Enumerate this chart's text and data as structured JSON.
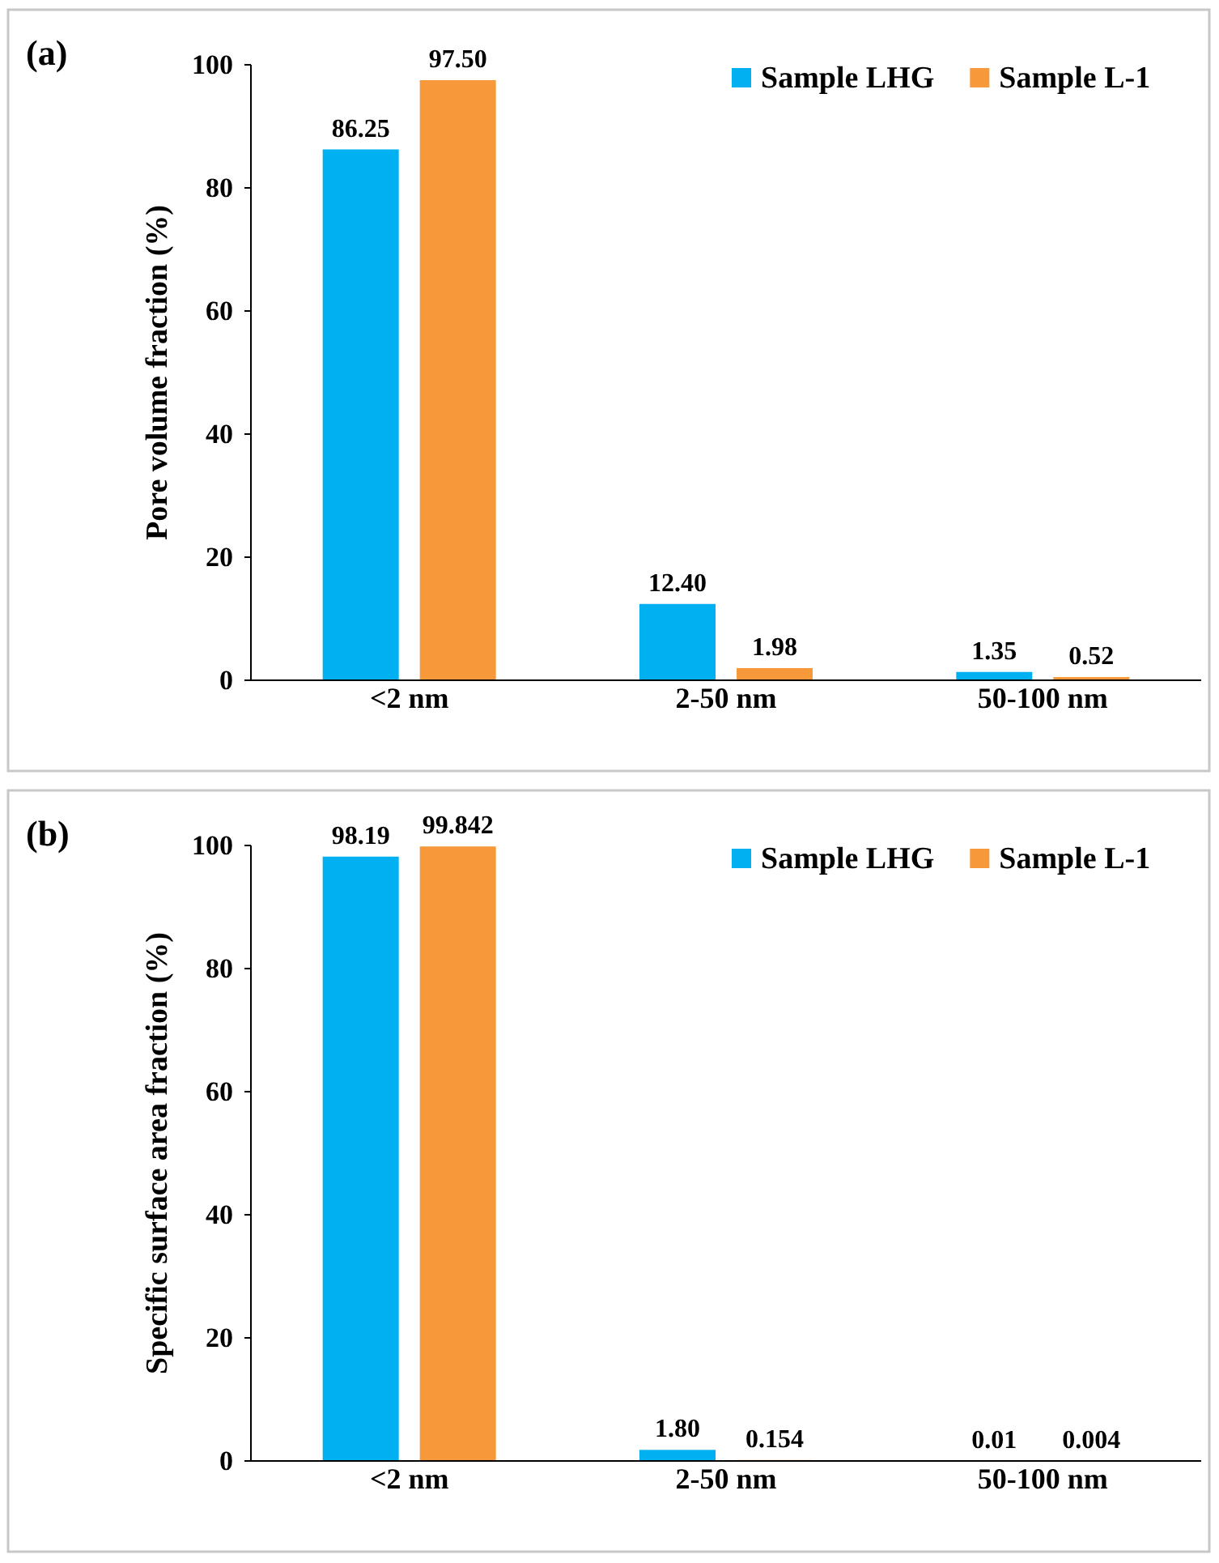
{
  "chart_data": [
    {
      "type": "bar",
      "annotations": [
        "(a)"
      ],
      "ylabel": "Pore volume fraction (%)",
      "categories": [
        "<2 nm",
        "2-50 nm",
        "50-100 nm"
      ],
      "ylim": [
        0,
        100
      ],
      "yticks": [
        0,
        20,
        40,
        60,
        80,
        100
      ],
      "legend": "top right",
      "series": [
        {
          "name": "Sample LHG",
          "color": "#00b0f0",
          "values": [
            86.25,
            12.4,
            1.35
          ],
          "value_labels": [
            "86.25",
            "12.40",
            "1.35"
          ]
        },
        {
          "name": "Sample L-1",
          "color": "#f7993a",
          "values": [
            97.5,
            1.98,
            0.52
          ],
          "value_labels": [
            "97.50",
            "1.98",
            "0.52"
          ]
        }
      ]
    },
    {
      "type": "bar",
      "annotations": [
        "(b)"
      ],
      "ylabel": "Specific surface area fraction (%)",
      "categories": [
        "<2 nm",
        "2-50 nm",
        "50-100 nm"
      ],
      "ylim": [
        0,
        100
      ],
      "yticks": [
        0,
        20,
        40,
        60,
        80,
        100
      ],
      "legend": "top right",
      "series": [
        {
          "name": "Sample LHG",
          "color": "#00b0f0",
          "values": [
            98.19,
            1.8,
            0.01
          ],
          "value_labels": [
            "98.19",
            "1.80",
            "0.01"
          ]
        },
        {
          "name": "Sample L-1",
          "color": "#f7993a",
          "values": [
            99.842,
            0.154,
            0.004
          ],
          "value_labels": [
            "99.842",
            "0.154",
            "0.004"
          ]
        }
      ]
    }
  ]
}
